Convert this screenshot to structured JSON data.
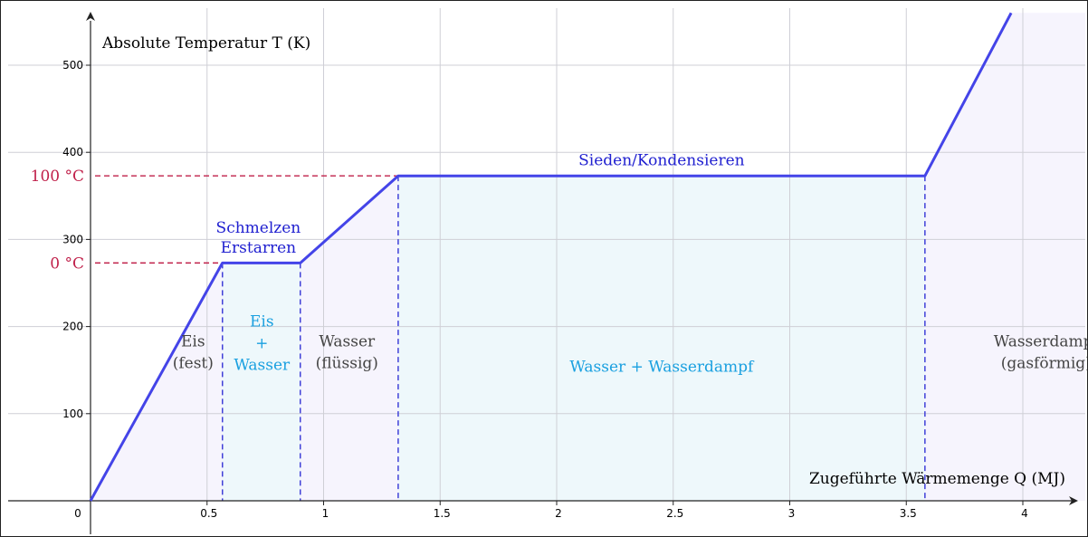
{
  "chart_data": {
    "type": "line",
    "xlabel": "Zugeführte Wärmemenge Q  (MJ)",
    "ylabel": "Absolute Temperatur T  (K)",
    "xlim": [
      0,
      4.2
    ],
    "ylim": [
      0,
      560
    ],
    "x_ticks": [
      {
        "v": 0,
        "label": "0"
      },
      {
        "v": 0.5,
        "label": "0.5"
      },
      {
        "v": 1,
        "label": "1"
      },
      {
        "v": 1.5,
        "label": "1.5"
      },
      {
        "v": 2,
        "label": "2"
      },
      {
        "v": 2.5,
        "label": "2.5"
      },
      {
        "v": 3,
        "label": "3"
      },
      {
        "v": 3.5,
        "label": "3.5"
      },
      {
        "v": 4,
        "label": "4"
      }
    ],
    "y_ticks": [
      {
        "v": 100,
        "label": "100"
      },
      {
        "v": 200,
        "label": "200"
      },
      {
        "v": 300,
        "label": "300"
      },
      {
        "v": 400,
        "label": "400"
      },
      {
        "v": 500,
        "label": "500"
      }
    ],
    "grid": true,
    "series": [
      {
        "color": "#4444e8",
        "x": [
          0,
          0.566,
          0.9,
          1.32,
          3.58,
          3.95
        ],
        "y": [
          0,
          273,
          273,
          373,
          373,
          560
        ]
      }
    ],
    "reference_lines": [
      {
        "y": 373,
        "label": "100 °C",
        "color": "#c0204a"
      },
      {
        "y": 273,
        "label": "0 °C",
        "color": "#c0204a"
      }
    ],
    "phase_boundaries": [
      0.566,
      0.9,
      1.32,
      3.58
    ],
    "transition_labels": [
      {
        "lines": [
          "Schmelzen",
          "Erstarren"
        ],
        "x": 0.72,
        "y": 285
      },
      {
        "lines": [
          "Sieden/Kondensieren"
        ],
        "x": 2.45,
        "y": 385
      }
    ],
    "phase_labels": [
      {
        "lines": [
          "Eis",
          "(fest)"
        ],
        "x": 0.44,
        "y": 165,
        "color": "grey"
      },
      {
        "lines": [
          "Eis",
          "+",
          "Wasser"
        ],
        "x": 0.735,
        "y": 175,
        "color": "cyan"
      },
      {
        "lines": [
          "Wasser",
          "(flüssig)"
        ],
        "x": 1.1,
        "y": 165,
        "color": "grey"
      },
      {
        "lines": [
          "Wasser + Wasserdampf"
        ],
        "x": 2.45,
        "y": 148,
        "color": "cyan"
      },
      {
        "lines": [
          "Wasserdampf",
          "(gasförmig)"
        ],
        "x": 4.1,
        "y": 165,
        "color": "grey"
      }
    ],
    "colors": {
      "curve": "#4444e8",
      "reference": "#c0204a",
      "region_fill": "#f6f4fd",
      "coexistence_fill": "#eef8fb",
      "phase_grey": "#444444",
      "phase_cyan": "#1aa0e0"
    }
  }
}
